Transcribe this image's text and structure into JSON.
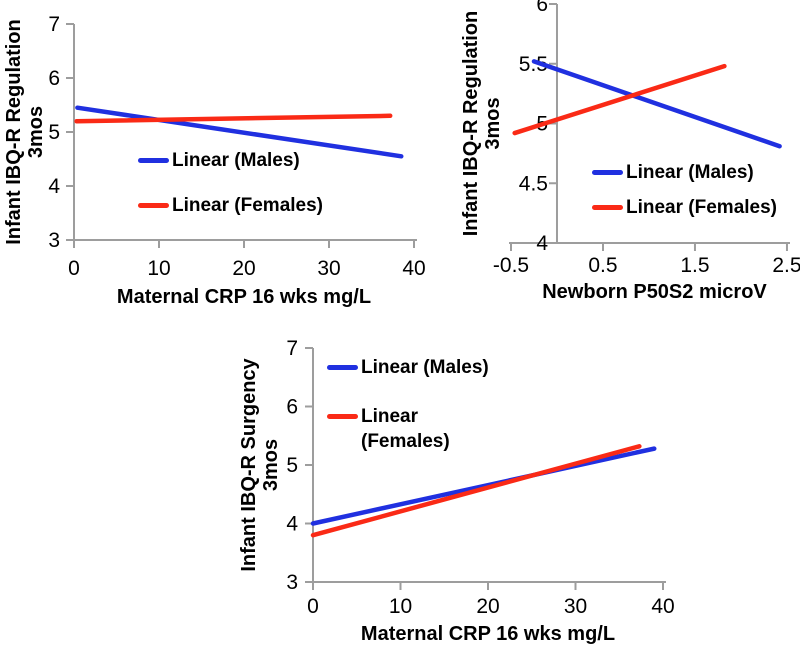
{
  "figure": {
    "description": "Three-panel figure of linear trend lines by infant sex",
    "background": "#ffffff"
  },
  "style": {
    "axis_color": "#9d9d9d",
    "text_color": "#000000",
    "males_color": "#2030e0",
    "females_color": "#fa2a16"
  },
  "chart_data": [
    {
      "type": "line",
      "title": "",
      "xlabel": "Maternal CRP 16 wks mg/L",
      "ylabel_lines": [
        "Infant IBQ-R Regulation",
        "3mos"
      ],
      "xlim": [
        0,
        40
      ],
      "ylim": [
        3,
        7
      ],
      "y_axis_at_x": 0,
      "grid": false,
      "xtick_values": [
        0,
        10,
        20,
        30,
        40
      ],
      "xtick_labels": [
        "0",
        "10",
        "20",
        "30",
        "40"
      ],
      "ytick_values": [
        3,
        4,
        5,
        6,
        7
      ],
      "ytick_labels": [
        "3",
        "4",
        "5",
        "6",
        "7"
      ],
      "series": [
        {
          "key": "males",
          "name": "Linear (Males)",
          "color": "#2030e0",
          "x": [
            0.4,
            38.5
          ],
          "y": [
            5.45,
            4.55
          ]
        },
        {
          "key": "females",
          "name": "Linear (Females)",
          "color": "#fa2a16",
          "x": [
            0.3,
            37.2
          ],
          "y": [
            5.2,
            5.3
          ]
        }
      ],
      "legend": {
        "position": "inside-center-left",
        "entries": [
          {
            "series": 0,
            "label_lines": [
              "Linear (Males)"
            ]
          },
          {
            "series": 1,
            "label_lines": [
              "Linear (Females)"
            ]
          }
        ]
      }
    },
    {
      "type": "line",
      "title": "",
      "xlabel": "Newborn P50S2 microV",
      "ylabel_lines": [
        "Infant IBQ-R Regulation",
        "3mos"
      ],
      "xlim": [
        -0.5,
        2.62
      ],
      "ylim": [
        4,
        6
      ],
      "y_axis_at_x": 0,
      "grid": false,
      "xtick_values": [
        -0.5,
        0.5,
        1.5,
        2.5
      ],
      "xtick_labels": [
        "-0.5",
        "0.5",
        "1.5",
        "2.5"
      ],
      "ytick_values": [
        4,
        4.5,
        5,
        5.5,
        6
      ],
      "ytick_labels": [
        "4",
        "4.5",
        "5",
        "5.5",
        "6"
      ],
      "series": [
        {
          "key": "males",
          "name": "Linear (Males)",
          "color": "#2030e0",
          "x": [
            -0.25,
            2.42
          ],
          "y": [
            5.52,
            4.81
          ]
        },
        {
          "key": "females",
          "name": "Linear (Females)",
          "color": "#fa2a16",
          "x": [
            -0.46,
            1.82
          ],
          "y": [
            4.92,
            5.48
          ]
        }
      ],
      "legend": {
        "position": "inside-lower-right",
        "entries": [
          {
            "series": 0,
            "label_lines": [
              "Linear (Males)"
            ]
          },
          {
            "series": 1,
            "label_lines": [
              "Linear (Females)"
            ]
          }
        ]
      }
    },
    {
      "type": "line",
      "title": "",
      "xlabel": "Maternal CRP 16 wks mg/L",
      "ylabel_lines": [
        "Infant IBQ-R Surgency",
        "3mos"
      ],
      "xlim": [
        0,
        40
      ],
      "ylim": [
        3,
        7
      ],
      "y_axis_at_x": 0,
      "grid": false,
      "xtick_values": [
        0,
        10,
        20,
        30,
        40
      ],
      "xtick_labels": [
        "0",
        "10",
        "20",
        "30",
        "40"
      ],
      "ytick_values": [
        3,
        4,
        5,
        6,
        7
      ],
      "ytick_labels": [
        "3",
        "4",
        "5",
        "6",
        "7"
      ],
      "series": [
        {
          "key": "males",
          "name": "Linear (Males)",
          "color": "#2030e0",
          "x": [
            0,
            39.0
          ],
          "y": [
            4.0,
            5.28
          ]
        },
        {
          "key": "females",
          "name": "Linear (Females)",
          "color": "#fa2a16",
          "x": [
            0,
            37.3
          ],
          "y": [
            3.8,
            5.32
          ]
        }
      ],
      "legend": {
        "position": "inside-upper-left",
        "entries": [
          {
            "series": 0,
            "label_lines": [
              "Linear (Males)"
            ]
          },
          {
            "series": 1,
            "label_lines": [
              "Linear",
              "(Females)"
            ]
          }
        ]
      }
    }
  ]
}
